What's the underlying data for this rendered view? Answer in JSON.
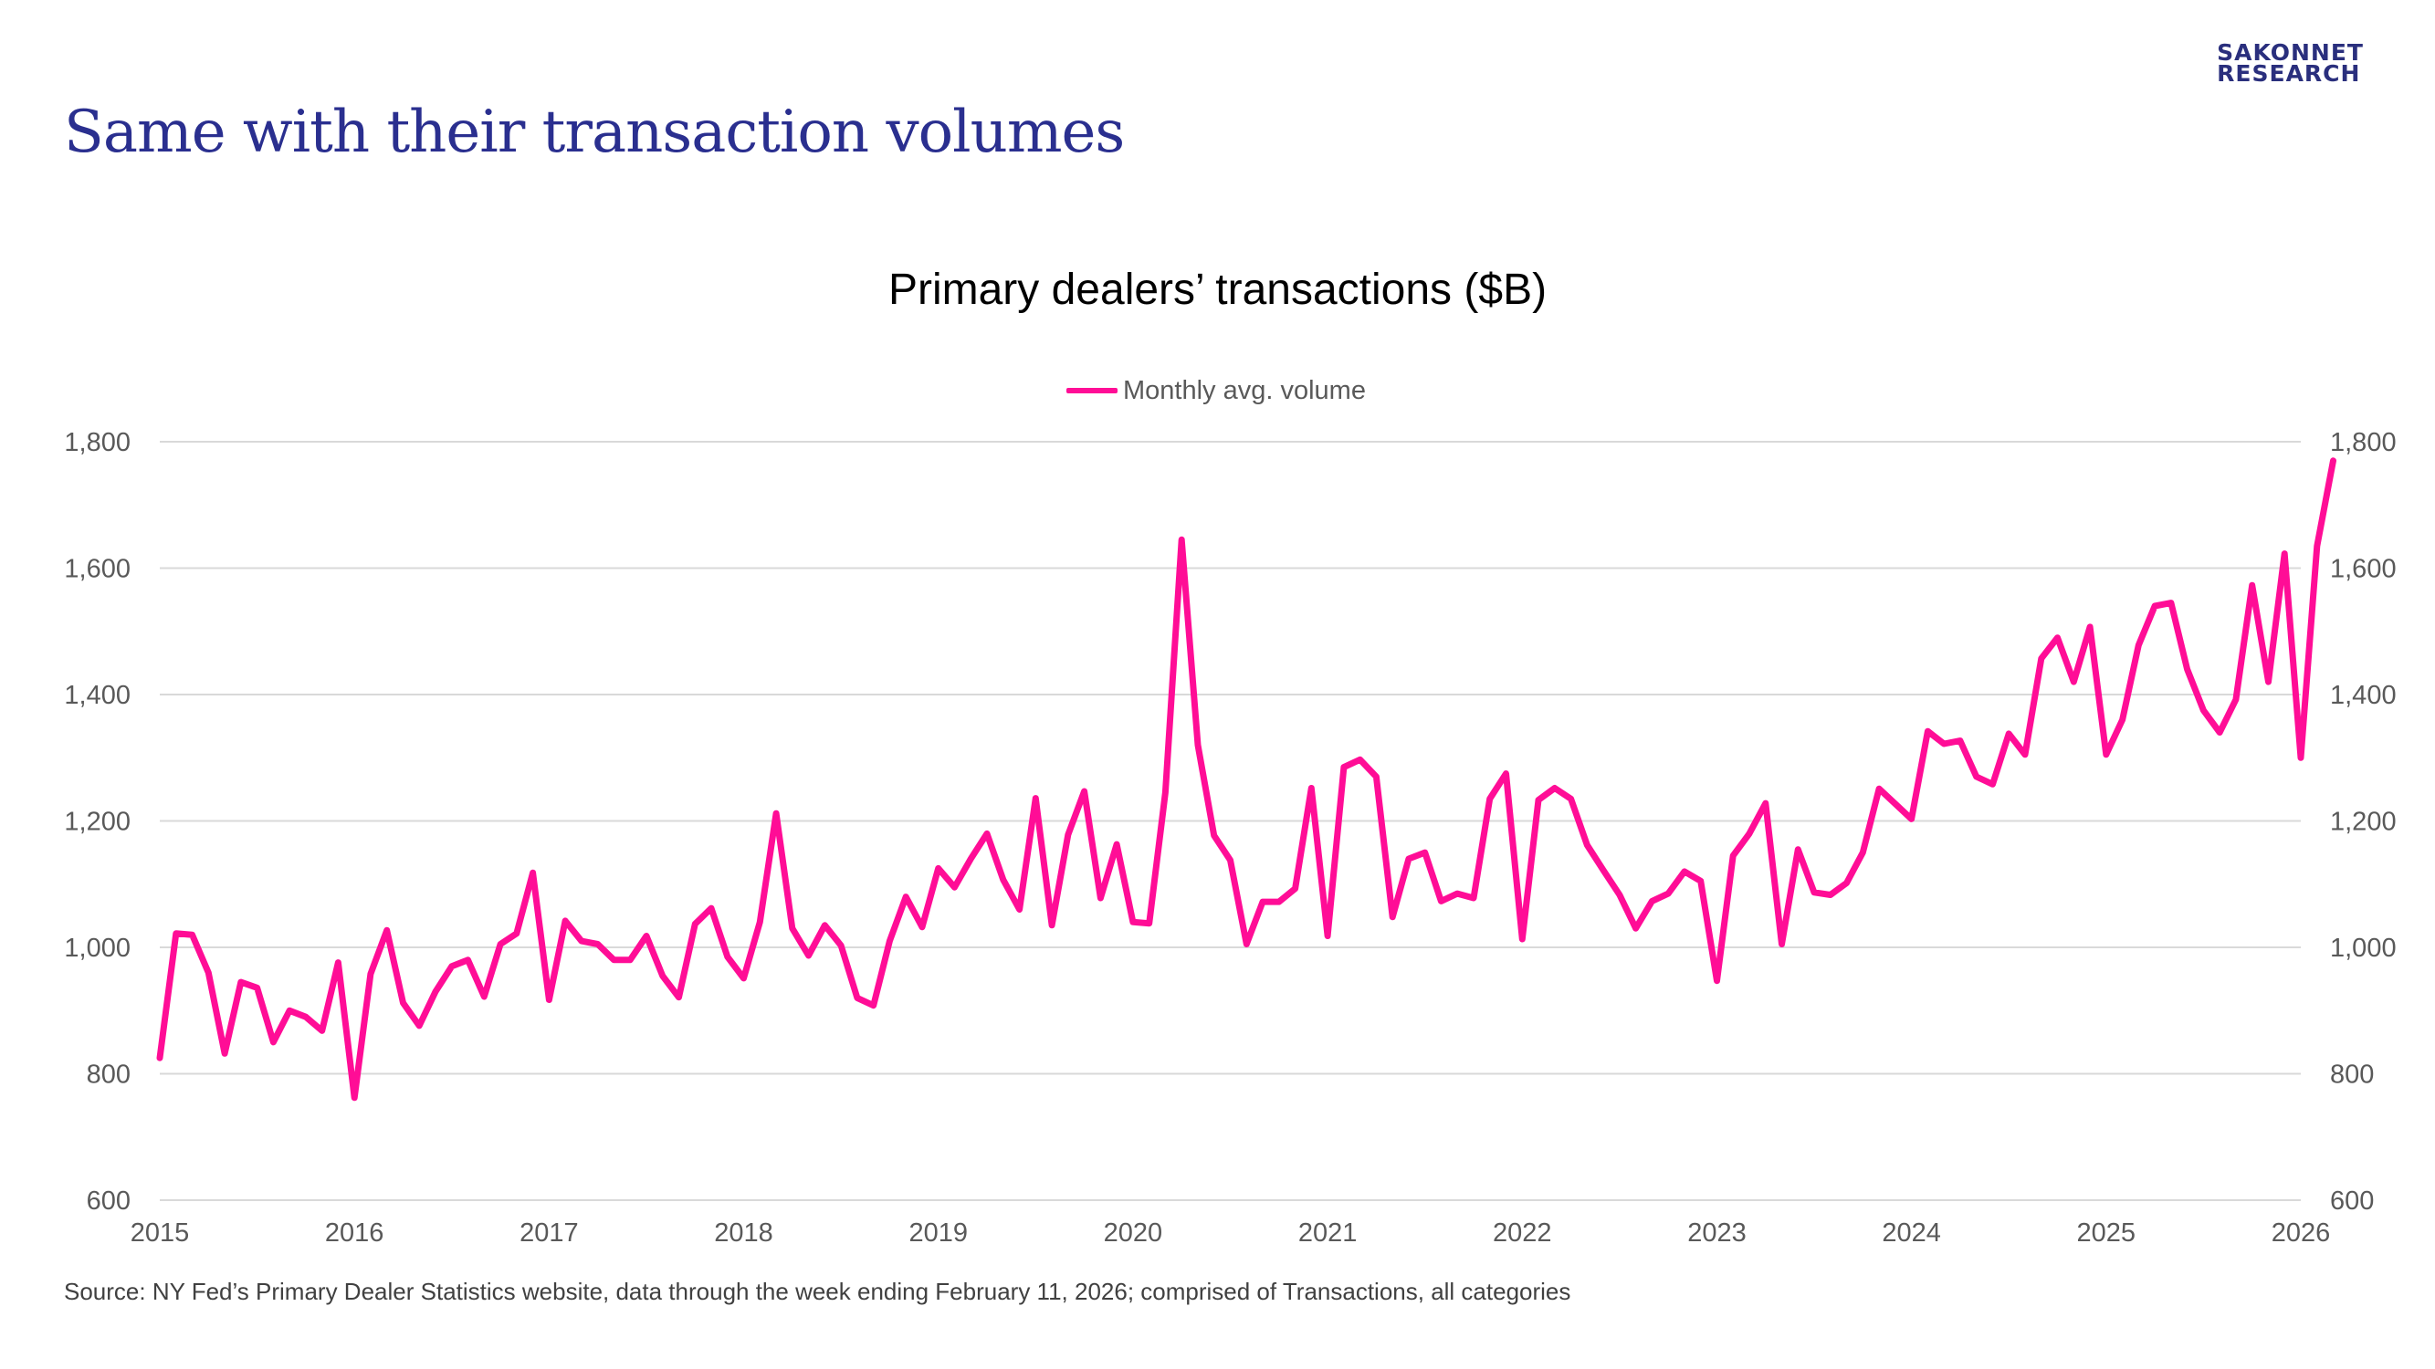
{
  "logo": {
    "line1": "SAKONNET",
    "line2": "RESEARCH"
  },
  "slide_title": "Same with their transaction volumes",
  "source": "Source: NY Fed’s Primary Dealer Statistics website, data through the week ending February 11, 2026; comprised of Transactions, all categories",
  "colors": {
    "series": "#ff0d96",
    "title": "#2a2f8f",
    "grid": "#d9d9d9",
    "axis_text": "#595959"
  },
  "chart_data": {
    "type": "line",
    "title": "Primary dealers’ transactions ($B)",
    "legend": "top-center",
    "grid": true,
    "ylim": [
      600,
      1800
    ],
    "y_ticks": [
      "600",
      "800",
      "1,000",
      "1,200",
      "1,400",
      "1,600",
      "1,800"
    ],
    "y_tick_values": [
      600,
      800,
      1000,
      1200,
      1400,
      1600,
      1800
    ],
    "x_ticks": [
      "2015",
      "2016",
      "2017",
      "2018",
      "2019",
      "2020",
      "2021",
      "2022",
      "2023",
      "2024",
      "2025",
      "2026"
    ],
    "x_start": 2015.0,
    "x_end": 2026.0,
    "x_step_months": 1,
    "series": [
      {
        "name": "Monthly avg. volume",
        "values": [
          825,
          1022,
          1020,
          960,
          832,
          945,
          936,
          850,
          900,
          890,
          868,
          976,
          762,
          958,
          1027,
          912,
          876,
          930,
          970,
          980,
          922,
          1005,
          1022,
          1118,
          917,
          1042,
          1010,
          1005,
          980,
          980,
          1018,
          955,
          921,
          1037,
          1062,
          985,
          951,
          1040,
          1212,
          1030,
          987,
          1035,
          1003,
          920,
          908,
          1010,
          1080,
          1032,
          1125,
          1095,
          1140,
          1180,
          1107,
          1060,
          1236,
          1035,
          1178,
          1247,
          1078,
          1163,
          1040,
          1038,
          1245,
          1645,
          1320,
          1177,
          1138,
          1005,
          1072,
          1072,
          1093,
          1252,
          1018,
          1285,
          1297,
          1270,
          1048,
          1140,
          1150,
          1073,
          1085,
          1078,
          1235,
          1275,
          1013,
          1233,
          1252,
          1235,
          1162,
          1122,
          1083,
          1030,
          1073,
          1085,
          1120,
          1105,
          947,
          1145,
          1180,
          1228,
          1005,
          1155,
          1087,
          1083,
          1102,
          1150,
          1251,
          1227,
          1203,
          1342,
          1322,
          1327,
          1270,
          1258,
          1338,
          1305,
          1457,
          1490,
          1420,
          1507,
          1305,
          1360,
          1478,
          1540,
          1545,
          1440,
          1375,
          1340,
          1392,
          1573,
          1420,
          1623,
          1300,
          1635,
          1770
        ]
      }
    ]
  }
}
